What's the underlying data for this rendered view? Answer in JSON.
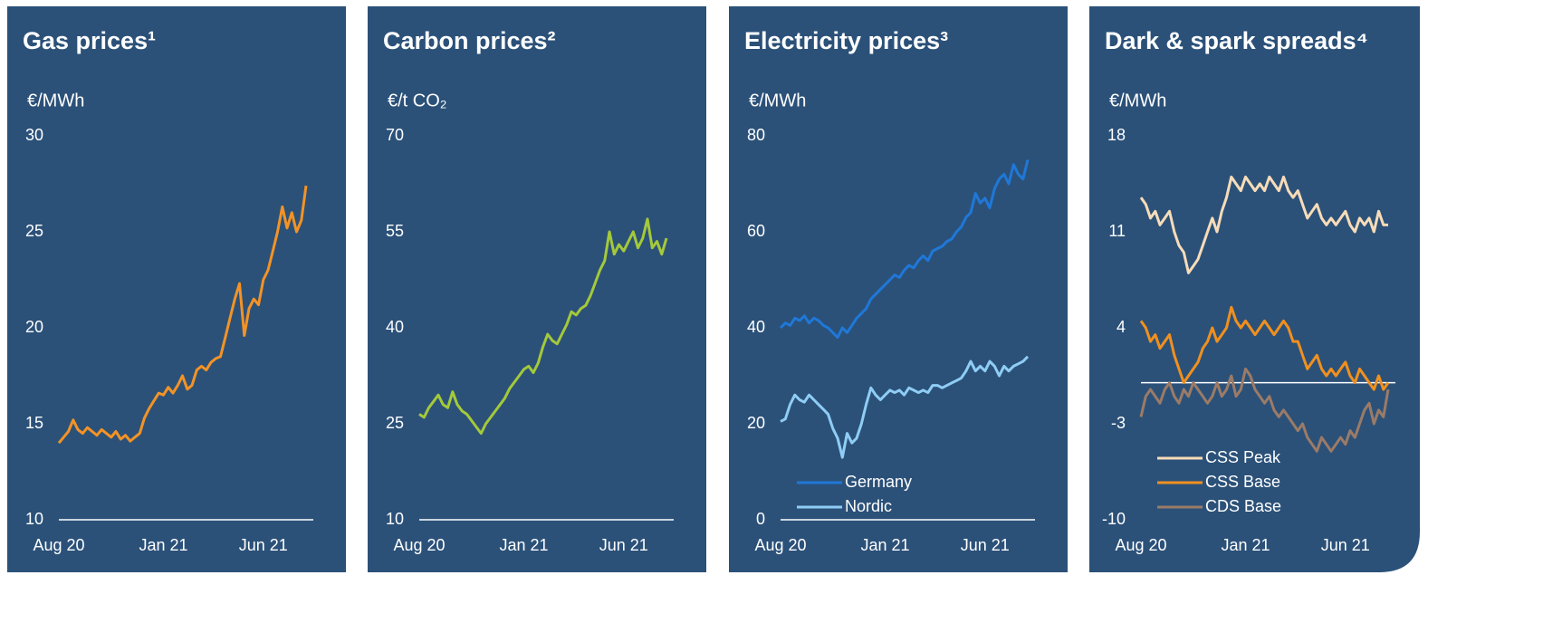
{
  "chart_data": [
    {
      "type": "line",
      "title": "Gas prices¹",
      "y_label": "€/MWh",
      "categories": [
        "Aug 20",
        null,
        null,
        null,
        null,
        null,
        null,
        null,
        null,
        null,
        null,
        null,
        null,
        null,
        null,
        null,
        null,
        null,
        null,
        null,
        null,
        null,
        "Jan 21",
        null,
        null,
        null,
        null,
        null,
        null,
        null,
        null,
        null,
        null,
        null,
        null,
        null,
        null,
        null,
        null,
        null,
        null,
        null,
        null,
        "Jun 21",
        null,
        null,
        null,
        null,
        null,
        null,
        null,
        null,
        null
      ],
      "values": [
        14.0,
        14.3,
        14.6,
        15.2,
        14.7,
        14.5,
        14.8,
        14.6,
        14.4,
        14.7,
        14.5,
        14.3,
        14.6,
        14.2,
        14.4,
        14.1,
        14.3,
        14.5,
        15.3,
        15.8,
        16.2,
        16.6,
        16.5,
        16.9,
        16.6,
        17.0,
        17.5,
        16.8,
        17.0,
        17.8,
        18.0,
        17.8,
        18.2,
        18.4,
        18.5,
        19.5,
        20.5,
        21.5,
        22.3,
        19.6,
        21.0,
        21.5,
        21.2,
        22.5,
        23.0,
        24.0,
        25.0,
        26.3,
        25.2,
        26.0,
        25.0,
        25.6,
        27.4
      ],
      "color": "#f39325",
      "ylim": [
        10,
        30
      ],
      "yticks": [
        10,
        15,
        20,
        25,
        30
      ]
    },
    {
      "type": "line",
      "title": "Carbon prices²",
      "y_label": "€/t CO₂",
      "categories": [
        "Aug 20",
        null,
        null,
        null,
        null,
        null,
        null,
        null,
        null,
        null,
        null,
        null,
        null,
        null,
        null,
        null,
        null,
        null,
        null,
        null,
        null,
        null,
        "Jan 21",
        null,
        null,
        null,
        null,
        null,
        null,
        null,
        null,
        null,
        null,
        null,
        null,
        null,
        null,
        null,
        null,
        null,
        null,
        null,
        null,
        "Jun 21",
        null,
        null,
        null,
        null,
        null,
        null,
        null,
        null,
        null
      ],
      "values": [
        26.5,
        26,
        27.5,
        28.5,
        29.5,
        28,
        27.5,
        30,
        28,
        27,
        26.5,
        25.5,
        24.5,
        23.5,
        25,
        26,
        27,
        28,
        29,
        30.5,
        31.5,
        32.5,
        33.5,
        34,
        33,
        34.5,
        37,
        39,
        38,
        37.5,
        39,
        40.5,
        42.5,
        42,
        43,
        43.5,
        45,
        47,
        49,
        50.5,
        55,
        51.5,
        53,
        52,
        53.5,
        55,
        52.5,
        54,
        57,
        52.5,
        53.5,
        51.5,
        54
      ],
      "color": "#a4c93a",
      "ylim": [
        10,
        70
      ],
      "yticks": [
        10,
        25,
        40,
        55,
        70
      ]
    },
    {
      "type": "line",
      "title": "Electricity prices³",
      "y_label": "€/MWh",
      "categories": [
        "Aug 20",
        null,
        null,
        null,
        null,
        null,
        null,
        null,
        null,
        null,
        null,
        null,
        null,
        null,
        null,
        null,
        null,
        null,
        null,
        null,
        null,
        null,
        "Jan 21",
        null,
        null,
        null,
        null,
        null,
        null,
        null,
        null,
        null,
        null,
        null,
        null,
        null,
        null,
        null,
        null,
        null,
        null,
        null,
        null,
        "Jun 21",
        null,
        null,
        null,
        null,
        null,
        null,
        null,
        null,
        null
      ],
      "series": [
        {
          "name": "Germany",
          "color": "#1f78d8",
          "values": [
            40,
            41,
            40.5,
            42,
            41.5,
            42.5,
            41,
            42,
            41.5,
            40.5,
            40,
            39,
            38,
            40,
            39,
            40.5,
            42,
            43,
            44,
            46,
            47,
            48,
            49,
            50,
            51,
            50.5,
            52,
            53,
            52.5,
            54,
            55,
            54,
            56,
            56.5,
            57,
            58,
            58.5,
            60,
            61,
            63,
            64,
            68,
            66,
            67,
            65,
            69,
            71,
            72,
            70,
            74,
            72,
            71,
            75
          ]
        },
        {
          "name": "Nordic",
          "color": "#8fcdf5",
          "values": [
            20.5,
            21,
            24,
            26,
            25,
            24.5,
            26,
            25,
            24,
            23,
            22,
            19,
            17,
            13,
            18,
            16,
            17,
            20,
            24,
            27.5,
            26,
            25,
            26,
            27,
            26.5,
            27,
            26,
            27.5,
            27,
            26.5,
            27,
            26.5,
            28,
            28,
            27.5,
            28,
            28.5,
            29,
            29.5,
            31,
            33,
            31,
            32,
            31,
            33,
            32,
            30,
            32,
            31,
            32,
            32.5,
            33,
            34
          ]
        }
      ],
      "ylim": [
        0,
        80
      ],
      "yticks": [
        0,
        20,
        40,
        60,
        80
      ],
      "legend": "lower left"
    },
    {
      "type": "line",
      "title": "Dark & spark spreads⁴",
      "y_label": "€/MWh",
      "categories": [
        "Aug 20",
        null,
        null,
        null,
        null,
        null,
        null,
        null,
        null,
        null,
        null,
        null,
        null,
        null,
        null,
        null,
        null,
        null,
        null,
        null,
        null,
        null,
        "Jan 21",
        null,
        null,
        null,
        null,
        null,
        null,
        null,
        null,
        null,
        null,
        null,
        null,
        null,
        null,
        null,
        null,
        null,
        null,
        null,
        null,
        "Jun 21",
        null,
        null,
        null,
        null,
        null,
        null,
        null,
        null,
        null
      ],
      "series": [
        {
          "name": "CSS Peak",
          "color": "#f7dcb8",
          "values": [
            13.5,
            13,
            12,
            12.5,
            11.5,
            12,
            12.5,
            11,
            10,
            9.5,
            8,
            8.5,
            9,
            10,
            11,
            12,
            11,
            12.5,
            13.5,
            15,
            14.5,
            14,
            15,
            14.5,
            14,
            14.5,
            14,
            15,
            14.5,
            14,
            15,
            14,
            13.5,
            14,
            13,
            12,
            12.5,
            13,
            12,
            11.5,
            12,
            11.5,
            12,
            12.5,
            11.5,
            11,
            12,
            11.5,
            12,
            11,
            12.5,
            11.5,
            11.5
          ]
        },
        {
          "name": "CSS Base",
          "color": "#f0901e",
          "values": [
            4.5,
            4,
            3,
            3.5,
            2.5,
            3,
            3.5,
            2,
            1,
            0,
            0.5,
            1,
            1.5,
            2.5,
            3,
            4,
            3,
            3.5,
            4,
            5.5,
            4.5,
            4,
            4.5,
            4,
            3.5,
            4,
            4.5,
            4,
            3.5,
            4,
            4.5,
            4,
            3,
            3,
            2,
            1,
            1.5,
            2,
            1,
            0.5,
            1,
            0.5,
            1,
            1.5,
            0.5,
            0,
            1,
            0.5,
            0,
            -0.5,
            0.5,
            -0.5,
            0
          ]
        },
        {
          "name": "CDS Base",
          "color": "#9b7b67",
          "values": [
            -2.5,
            -1,
            -0.5,
            -1,
            -1.5,
            -0.5,
            0,
            -1,
            -1.5,
            -0.5,
            -1,
            0,
            -0.5,
            -1,
            -1.5,
            -1,
            0,
            -1,
            -0.5,
            0.5,
            -1,
            -0.5,
            1,
            0.5,
            -0.5,
            -1,
            -1.5,
            -1,
            -2,
            -2.5,
            -2,
            -2.5,
            -3,
            -3.5,
            -3,
            -4,
            -4.5,
            -5,
            -4,
            -4.5,
            -5,
            -4.5,
            -4,
            -4.5,
            -3.5,
            -4,
            -3,
            -2,
            -1.5,
            -3,
            -2,
            -2.5,
            -0.5
          ]
        }
      ],
      "ylim": [
        -10,
        18
      ],
      "yticks": [
        -10,
        -3,
        4,
        11,
        18
      ],
      "legend": "lower left"
    }
  ]
}
